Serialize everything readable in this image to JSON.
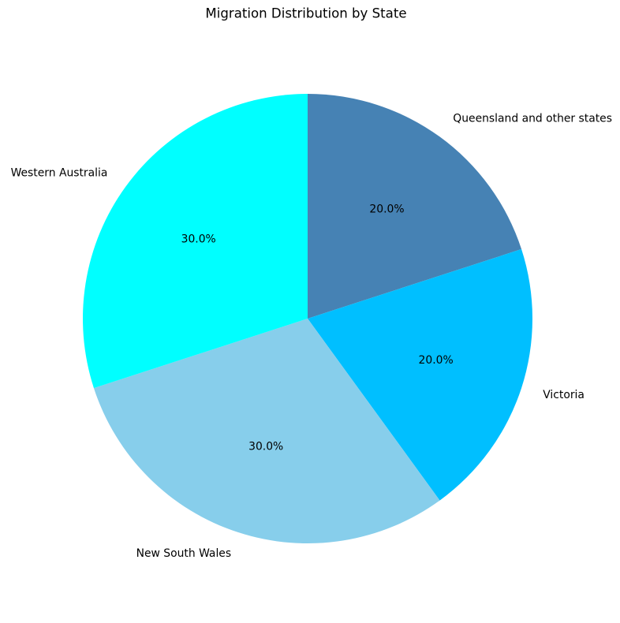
{
  "chart_data": {
    "type": "pie",
    "title": "Migration Distribution by State",
    "labels": [
      "Queensland and other states",
      "Victoria",
      "New South Wales",
      "Western Australia"
    ],
    "values": [
      20.0,
      20.0,
      30.0,
      30.0
    ],
    "percent_labels": [
      "20.0%",
      "20.0%",
      "30.0%",
      "30.0%"
    ],
    "colors": [
      "#4682b4",
      "#00bfff",
      "#87ceeb",
      "#00ffff"
    ],
    "start_angle_deg": 90,
    "direction": "clockwise",
    "label_distance": 1.1,
    "percent_distance": 0.6,
    "legend": "none",
    "background": "#ffffff",
    "text_color": "#000000"
  }
}
